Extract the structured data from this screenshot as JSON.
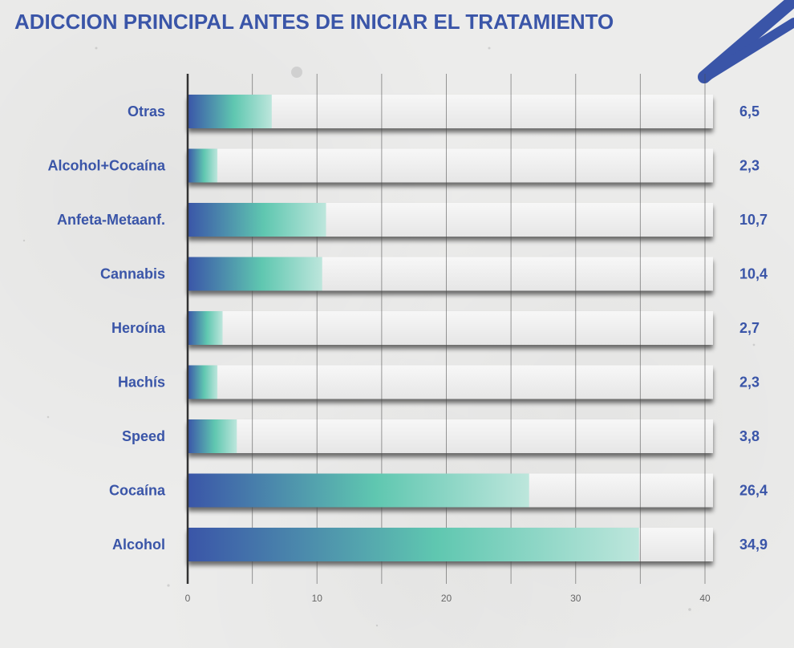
{
  "chart_data": {
    "type": "bar",
    "orientation": "horizontal",
    "title": "ADICCION PRINCIPAL ANTES DE INICIAR EL TRATAMIENTO",
    "categories": [
      "Otras",
      "Alcohol+Cocaína",
      "Anfeta-Metaanf.",
      "Cannabis",
      "Heroína",
      "Hachís",
      "Speed",
      "Cocaína",
      "Alcohol"
    ],
    "values": [
      6.5,
      2.3,
      10.7,
      10.4,
      2.7,
      2.3,
      3.8,
      26.4,
      34.9
    ],
    "value_labels": [
      "6,5",
      "2,3",
      "10,7",
      "10,4",
      "2,7",
      "2,3",
      "3,8",
      "26,4",
      "34,9"
    ],
    "xlim": [
      0,
      40
    ],
    "xticks": [
      0,
      10,
      20,
      30,
      40
    ],
    "grid": true,
    "xlabel": "",
    "ylabel": ""
  },
  "colors": {
    "title": "#3a55a8",
    "labels": "#3a55a8",
    "bar_start": "#3a55a8",
    "bar_mid": "#5fc7b0",
    "bar_end": "#bde6dc",
    "track": "#f3f3f3",
    "grid": "#4a4a4a",
    "accent_stroke": "#3a55a8"
  }
}
